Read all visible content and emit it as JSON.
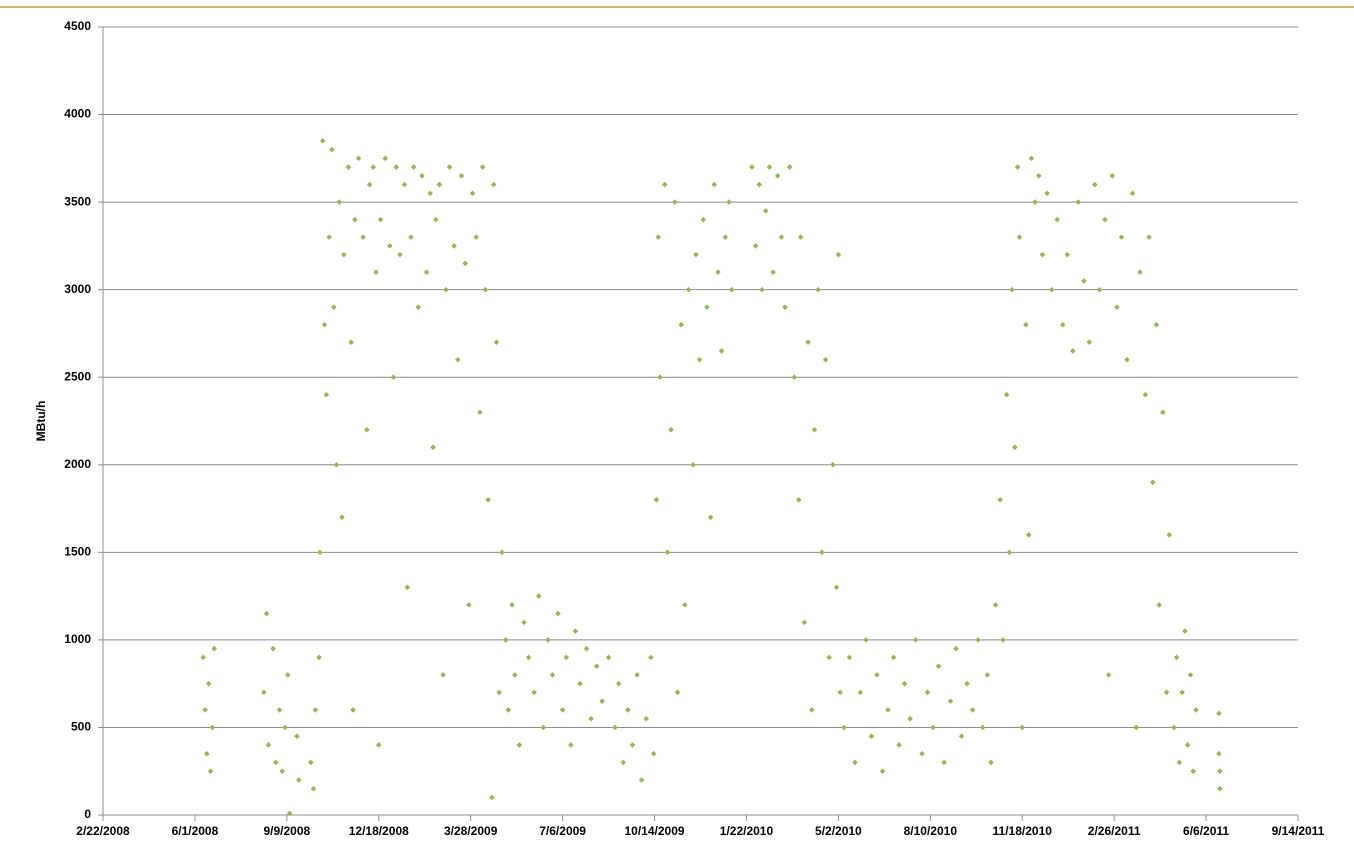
{
  "chart_data": {
    "type": "scatter",
    "ylabel": "MBtu/h",
    "color": "#92b850",
    "grid": true,
    "xlim": [
      "2008-02-22",
      "2011-09-14"
    ],
    "xticks": [
      {
        "value": "2008-02-22",
        "label": "2/22/2008"
      },
      {
        "value": "2008-06-01",
        "label": "6/1/2008"
      },
      {
        "value": "2008-09-09",
        "label": "9/9/2008"
      },
      {
        "value": "2008-12-18",
        "label": "12/18/2008"
      },
      {
        "value": "2009-03-28",
        "label": "3/28/2009"
      },
      {
        "value": "2009-07-06",
        "label": "7/6/2009"
      },
      {
        "value": "2009-10-14",
        "label": "10/14/2009"
      },
      {
        "value": "2010-01-22",
        "label": "1/22/2010"
      },
      {
        "value": "2010-05-02",
        "label": "5/2/2010"
      },
      {
        "value": "2010-08-10",
        "label": "8/10/2010"
      },
      {
        "value": "2010-11-18",
        "label": "11/18/2010"
      },
      {
        "value": "2011-02-26",
        "label": "2/26/2011"
      },
      {
        "value": "2011-06-06",
        "label": "6/6/2011"
      },
      {
        "value": "2011-09-14",
        "label": "9/14/2011"
      }
    ],
    "ylim": [
      0,
      4500
    ],
    "yticks": [
      0,
      500,
      1000,
      1500,
      2000,
      2500,
      3000,
      3500,
      4000,
      4500
    ],
    "x": [
      "2008-06-10",
      "2008-06-12",
      "2008-06-14",
      "2008-06-16",
      "2008-06-18",
      "2008-06-20",
      "2008-06-22",
      "2008-08-15",
      "2008-08-20",
      "2008-08-25",
      "2008-08-28",
      "2008-09-01",
      "2008-09-04",
      "2008-09-07",
      "2008-08-18",
      "2008-09-10",
      "2008-09-12",
      "2008-09-20",
      "2008-09-22",
      "2008-10-05",
      "2008-10-08",
      "2008-10-10",
      "2008-10-14",
      "2008-10-15",
      "2008-10-18",
      "2008-10-20",
      "2008-10-22",
      "2008-10-25",
      "2008-10-28",
      "2008-10-30",
      "2008-11-02",
      "2008-11-05",
      "2008-11-08",
      "2008-11-10",
      "2008-11-15",
      "2008-11-18",
      "2008-11-20",
      "2008-11-22",
      "2008-11-26",
      "2008-12-01",
      "2008-12-05",
      "2008-12-08",
      "2008-12-12",
      "2008-12-15",
      "2008-12-18",
      "2008-12-20",
      "2008-12-25",
      "2008-12-30",
      "2009-01-03",
      "2009-01-06",
      "2009-01-10",
      "2009-01-15",
      "2009-01-18",
      "2009-01-22",
      "2009-01-25",
      "2009-01-30",
      "2009-02-03",
      "2009-02-08",
      "2009-02-12",
      "2009-02-15",
      "2009-02-18",
      "2009-02-22",
      "2009-02-26",
      "2009-03-01",
      "2009-03-05",
      "2009-03-10",
      "2009-03-14",
      "2009-03-18",
      "2009-03-22",
      "2009-03-26",
      "2009-03-30",
      "2009-04-03",
      "2009-04-07",
      "2009-04-10",
      "2009-04-13",
      "2009-04-16",
      "2009-04-20",
      "2009-04-22",
      "2009-04-25",
      "2009-04-28",
      "2009-05-01",
      "2009-05-05",
      "2009-05-08",
      "2009-05-12",
      "2009-05-15",
      "2009-05-20",
      "2009-05-25",
      "2009-05-30",
      "2009-06-05",
      "2009-06-10",
      "2009-06-15",
      "2009-06-20",
      "2009-06-25",
      "2009-07-01",
      "2009-07-06",
      "2009-07-10",
      "2009-07-15",
      "2009-07-20",
      "2009-07-25",
      "2009-08-01",
      "2009-08-06",
      "2009-08-12",
      "2009-08-18",
      "2009-08-25",
      "2009-09-01",
      "2009-09-05",
      "2009-09-10",
      "2009-09-15",
      "2009-09-20",
      "2009-09-25",
      "2009-09-30",
      "2009-10-05",
      "2009-10-10",
      "2009-10-13",
      "2009-10-16",
      "2009-10-18",
      "2009-10-20",
      "2009-10-25",
      "2009-10-28",
      "2009-11-01",
      "2009-11-05",
      "2009-11-08",
      "2009-11-12",
      "2009-11-16",
      "2009-11-20",
      "2009-11-25",
      "2009-11-28",
      "2009-12-02",
      "2009-12-06",
      "2009-12-10",
      "2009-12-14",
      "2009-12-18",
      "2009-12-22",
      "2009-12-26",
      "2009-12-30",
      "2010-01-03",
      "2010-01-06",
      "2010-01-28",
      "2010-02-01",
      "2010-02-05",
      "2010-02-08",
      "2010-02-12",
      "2010-02-16",
      "2010-02-20",
      "2010-02-25",
      "2010-03-01",
      "2010-03-05",
      "2010-03-10",
      "2010-03-15",
      "2010-03-20",
      "2010-03-22",
      "2010-03-26",
      "2010-03-30",
      "2010-04-03",
      "2010-04-06",
      "2010-04-10",
      "2010-04-14",
      "2010-04-18",
      "2010-04-22",
      "2010-04-26",
      "2010-04-30",
      "2010-05-02",
      "2010-05-04",
      "2010-05-08",
      "2010-05-14",
      "2010-05-20",
      "2010-05-26",
      "2010-06-01",
      "2010-06-07",
      "2010-06-13",
      "2010-06-19",
      "2010-06-25",
      "2010-07-01",
      "2010-07-07",
      "2010-07-13",
      "2010-07-19",
      "2010-07-25",
      "2010-08-01",
      "2010-08-07",
      "2010-08-13",
      "2010-08-19",
      "2010-08-25",
      "2010-09-01",
      "2010-09-07",
      "2010-09-13",
      "2010-09-19",
      "2010-09-25",
      "2010-10-01",
      "2010-10-06",
      "2010-10-11",
      "2010-10-15",
      "2010-10-20",
      "2010-10-25",
      "2010-10-28",
      "2010-11-01",
      "2010-11-04",
      "2010-11-07",
      "2010-11-10",
      "2010-11-13",
      "2010-11-15",
      "2010-11-18",
      "2010-11-22",
      "2010-11-25",
      "2010-11-28",
      "2010-12-02",
      "2010-12-06",
      "2010-12-10",
      "2010-12-15",
      "2010-12-20",
      "2010-12-26",
      "2011-01-01",
      "2011-01-06",
      "2011-01-12",
      "2011-01-18",
      "2011-01-24",
      "2011-01-30",
      "2011-02-05",
      "2011-02-10",
      "2011-02-16",
      "2011-02-20",
      "2011-02-24",
      "2011-03-01",
      "2011-03-06",
      "2011-03-12",
      "2011-03-18",
      "2011-03-22",
      "2011-03-26",
      "2011-04-01",
      "2011-04-05",
      "2011-04-09",
      "2011-04-13",
      "2011-04-16",
      "2011-04-20",
      "2011-04-24",
      "2011-04-27",
      "2011-05-02",
      "2011-05-05",
      "2011-05-08",
      "2011-05-11",
      "2011-05-14",
      "2011-05-17",
      "2011-05-20",
      "2011-05-23",
      "2011-05-26",
      "2011-06-20",
      "2011-06-20",
      "2011-06-21",
      "2011-06-21"
    ],
    "values": [
      900,
      600,
      350,
      750,
      250,
      500,
      950,
      700,
      400,
      950,
      300,
      600,
      250,
      500,
      1150,
      800,
      10,
      450,
      200,
      300,
      150,
      600,
      900,
      1500,
      3850,
      2800,
      2400,
      3300,
      3800,
      2900,
      2000,
      3500,
      1700,
      3200,
      3700,
      2700,
      600,
      3400,
      3750,
      3300,
      2200,
      3600,
      3700,
      3100,
      400,
      3400,
      3750,
      3250,
      2500,
      3700,
      3200,
      3600,
      1300,
      3300,
      3700,
      2900,
      3650,
      3100,
      3550,
      2100,
      3400,
      3600,
      800,
      3000,
      3700,
      3250,
      2600,
      3650,
      3150,
      1200,
      3550,
      3300,
      2300,
      3700,
      3000,
      1800,
      100,
      3600,
      2700,
      700,
      1500,
      1000,
      600,
      1200,
      800,
      400,
      1100,
      900,
      700,
      1250,
      500,
      1000,
      800,
      1150,
      600,
      900,
      400,
      1050,
      750,
      950,
      550,
      850,
      650,
      900,
      500,
      750,
      300,
      600,
      400,
      800,
      200,
      550,
      900,
      350,
      1800,
      3300,
      2500,
      3600,
      1500,
      2200,
      3500,
      700,
      2800,
      1200,
      3000,
      2000,
      3200,
      2600,
      3400,
      2900,
      1700,
      3600,
      3100,
      2650,
      3300,
      3500,
      3000,
      3700,
      3250,
      3600,
      3000,
      3450,
      3700,
      3100,
      3650,
      3300,
      2900,
      3700,
      2500,
      1800,
      3300,
      1100,
      2700,
      600,
      2200,
      3000,
      1500,
      2600,
      900,
      2000,
      1300,
      3200,
      700,
      500,
      900,
      300,
      700,
      1000,
      450,
      800,
      250,
      600,
      900,
      400,
      750,
      550,
      1000,
      350,
      700,
      500,
      850,
      300,
      650,
      950,
      450,
      750,
      600,
      1000,
      500,
      800,
      300,
      1200,
      1800,
      1000,
      2400,
      1500,
      3000,
      2100,
      3700,
      3300,
      500,
      2800,
      1600,
      3750,
      3500,
      3650,
      3200,
      3550,
      3000,
      3400,
      2800,
      3200,
      2650,
      3500,
      3050,
      2700,
      3600,
      3000,
      3400,
      800,
      3650,
      2900,
      3300,
      2600,
      3550,
      500,
      3100,
      2400,
      3300,
      1900,
      2800,
      1200,
      2300,
      700,
      1600,
      500,
      900,
      300,
      700,
      1050,
      400,
      800,
      250,
      600,
      580,
      350,
      150,
      250
    ]
  }
}
